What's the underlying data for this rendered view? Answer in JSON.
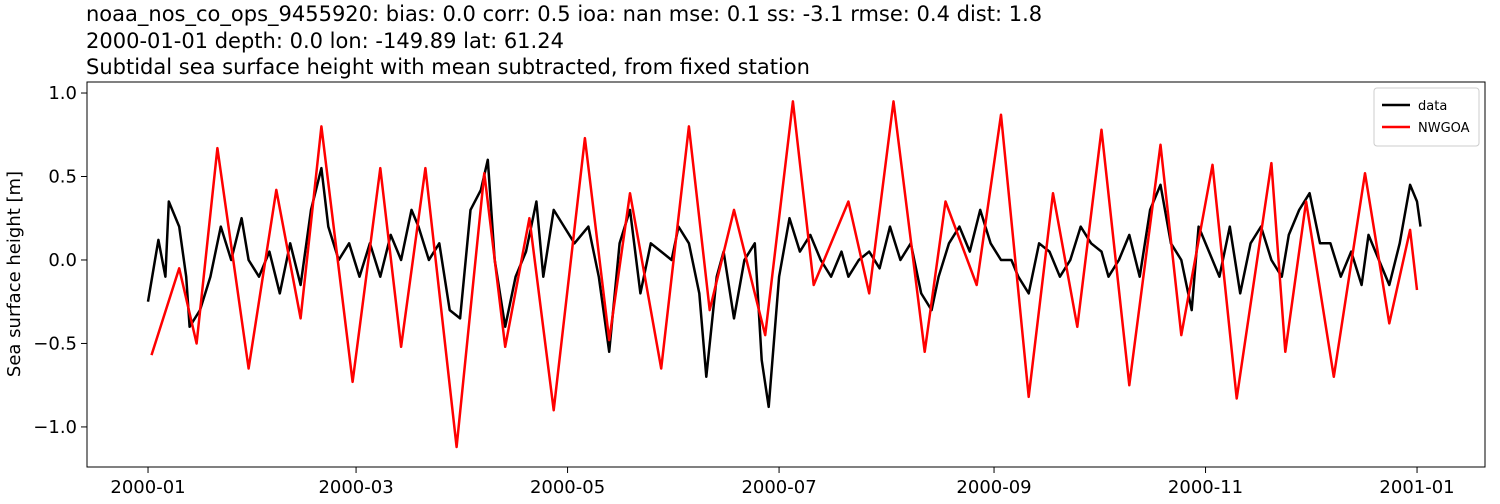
{
  "chart_data": {
    "type": "line",
    "title_lines": [
      "noaa_nos_co_ops_9455920: bias: 0.0  corr: 0.5  ioa: nan  mse: 0.1  ss: -3.1  rmse: 0.4  dist: 1.8",
      "2000-01-01 depth: 0.0 lon: -149.89 lat: 61.24",
      "Subtidal sea surface height with mean subtracted, from fixed station"
    ],
    "y_label": "Sea surface height [m]",
    "xlim": [
      -17.6,
      385.6
    ],
    "xticks": [
      {
        "value": 0,
        "label": "2000-01"
      },
      {
        "value": 60,
        "label": "2000-03"
      },
      {
        "value": 121,
        "label": "2000-05"
      },
      {
        "value": 182,
        "label": "2000-07"
      },
      {
        "value": 244,
        "label": "2000-09"
      },
      {
        "value": 305,
        "label": "2000-11"
      },
      {
        "value": 366,
        "label": "2001-01"
      }
    ],
    "ylim": [
      -1.24,
      1.066
    ],
    "yticks": [
      {
        "value": -1.0,
        "label": "−1.0"
      },
      {
        "value": -0.5,
        "label": "−0.5"
      },
      {
        "value": 0.0,
        "label": "0.0"
      },
      0.5,
      {
        "value": 1.0,
        "label": "1.0"
      }
    ],
    "grid": false,
    "legend": "upper right",
    "series": [
      {
        "name": "data",
        "color": "#000000",
        "x": [
          0,
          2,
          3,
          5,
          6,
          9,
          11,
          12,
          15,
          18,
          21,
          24,
          27,
          29,
          32,
          35,
          38,
          41,
          44,
          47,
          50,
          52,
          55,
          58,
          61,
          64,
          67,
          70,
          73,
          76,
          78,
          81,
          84,
          87,
          90,
          93,
          96,
          98,
          100,
          103,
          106,
          109,
          112,
          114,
          117,
          120,
          123,
          127,
          130,
          133,
          136,
          139,
          142,
          145,
          148,
          151,
          153,
          156,
          159,
          161,
          164,
          166,
          169,
          172,
          175,
          177,
          179,
          182,
          185,
          188,
          191,
          194,
          197,
          200,
          202,
          205,
          208,
          211,
          214,
          217,
          220,
          223,
          226,
          228,
          231,
          234,
          237,
          240,
          243,
          246,
          249,
          251,
          254,
          257,
          260,
          263,
          266,
          269,
          272,
          275,
          277,
          280,
          283,
          286,
          289,
          292,
          295,
          298,
          301,
          303,
          306,
          309,
          312,
          315,
          318,
          321,
          324,
          327,
          329,
          332,
          335,
          338,
          341,
          344,
          347,
          350,
          352,
          355,
          358,
          361,
          364,
          366,
          367
        ],
        "values": [
          -0.25,
          0.0,
          0.12,
          -0.1,
          0.35,
          0.2,
          -0.1,
          -0.4,
          -0.3,
          -0.1,
          0.2,
          0.0,
          0.25,
          0.0,
          -0.1,
          0.05,
          -0.2,
          0.1,
          -0.15,
          0.3,
          0.55,
          0.2,
          0.0,
          0.1,
          -0.1,
          0.1,
          -0.1,
          0.15,
          0.0,
          0.3,
          0.2,
          0.0,
          0.1,
          -0.3,
          -0.35,
          0.3,
          0.42,
          0.6,
          0.0,
          -0.4,
          -0.1,
          0.05,
          0.35,
          -0.1,
          0.3,
          0.2,
          0.1,
          0.2,
          -0.1,
          -0.55,
          0.1,
          0.3,
          -0.2,
          0.1,
          0.05,
          0.0,
          0.2,
          0.1,
          -0.2,
          -0.7,
          -0.1,
          0.05,
          -0.35,
          0.0,
          0.1,
          -0.6,
          -0.88,
          -0.1,
          0.25,
          0.05,
          0.15,
          0.0,
          -0.1,
          0.05,
          -0.1,
          0.0,
          0.05,
          -0.05,
          0.2,
          0.0,
          0.1,
          -0.2,
          -0.3,
          -0.1,
          0.1,
          0.2,
          0.05,
          0.3,
          0.1,
          0.0,
          0.0,
          -0.1,
          -0.2,
          0.1,
          0.05,
          -0.1,
          0.0,
          0.2,
          0.1,
          0.05,
          -0.1,
          0.0,
          0.15,
          -0.1,
          0.3,
          0.45,
          0.1,
          0.0,
          -0.3,
          0.2,
          0.05,
          -0.1,
          0.2,
          -0.2,
          0.1,
          0.2,
          0.0,
          -0.1,
          0.15,
          0.3,
          0.4,
          0.1,
          0.1,
          -0.1,
          0.05,
          -0.15,
          0.15,
          0.0,
          -0.15,
          0.1,
          0.45,
          0.35,
          0.2
        ]
      },
      {
        "name": "NWGOA",
        "color": "#ff0000",
        "x": [
          1,
          9,
          14,
          20,
          29,
          37,
          44,
          50,
          59,
          67,
          73,
          80,
          89,
          97,
          103,
          110,
          117,
          126,
          133,
          139,
          148,
          156,
          162,
          169,
          178,
          186,
          192,
          202,
          208,
          215,
          224,
          230,
          239,
          246,
          254,
          261,
          268,
          275,
          283,
          292,
          298,
          307,
          314,
          324,
          328,
          334,
          342,
          351,
          358,
          364,
          366
        ],
        "values": [
          -0.57,
          -0.05,
          -0.5,
          0.67,
          -0.65,
          0.42,
          -0.35,
          0.8,
          -0.73,
          0.55,
          -0.52,
          0.55,
          -1.12,
          0.52,
          -0.52,
          0.25,
          -0.9,
          0.73,
          -0.48,
          0.4,
          -0.65,
          0.8,
          -0.3,
          0.3,
          -0.45,
          0.95,
          -0.15,
          0.35,
          -0.2,
          0.95,
          -0.55,
          0.35,
          -0.15,
          0.87,
          -0.82,
          0.4,
          -0.4,
          0.78,
          -0.75,
          0.69,
          -0.45,
          0.57,
          -0.83,
          0.58,
          -0.55,
          0.35,
          -0.7,
          0.52,
          -0.38,
          0.18,
          -0.18
        ]
      }
    ]
  }
}
